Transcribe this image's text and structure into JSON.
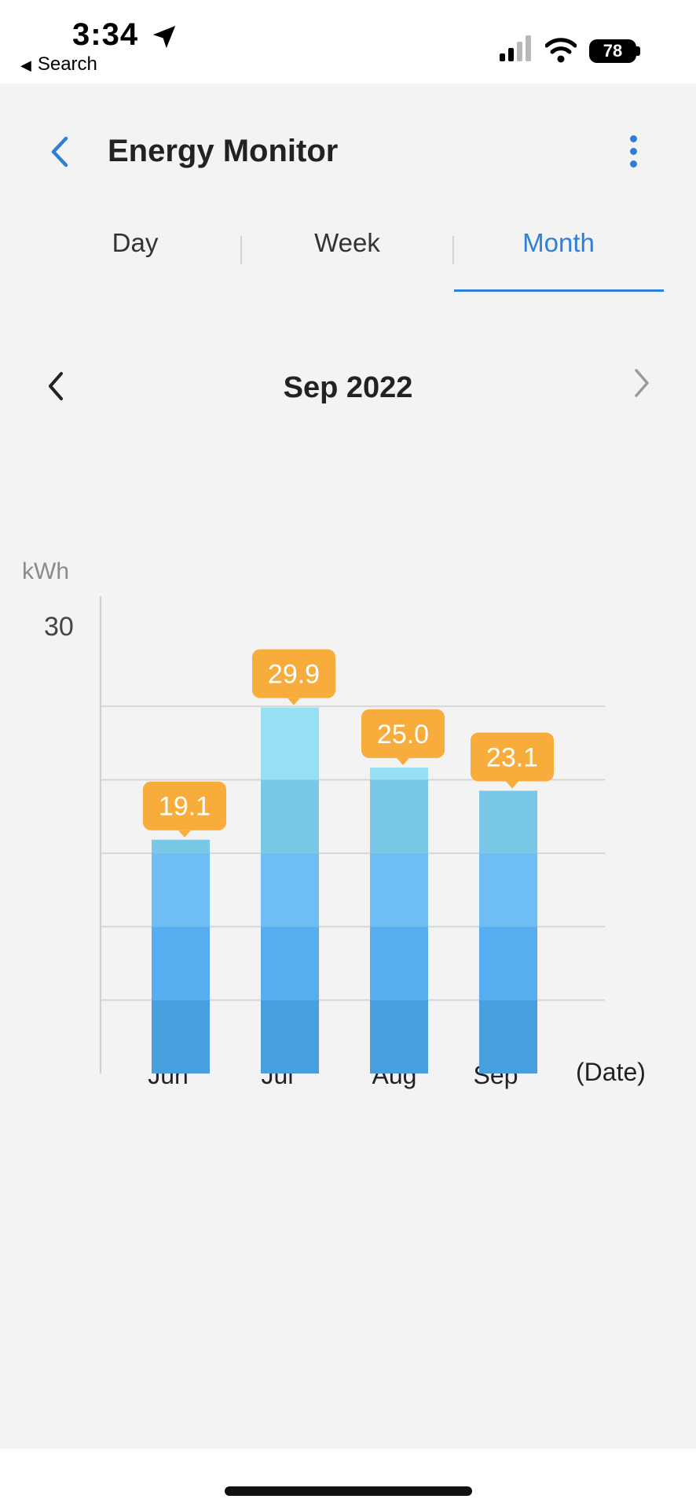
{
  "status_bar": {
    "time": "3:34",
    "back_label": "Search",
    "battery": "78"
  },
  "header": {
    "title": "Energy Monitor"
  },
  "tabs": [
    {
      "label": "Day",
      "active": false
    },
    {
      "label": "Week",
      "active": false
    },
    {
      "label": "Month",
      "active": true
    }
  ],
  "period": {
    "label": "Sep 2022"
  },
  "colors": {
    "accent": "#2f7fd6",
    "badge": "#f8ac3c",
    "bar_levels": [
      "#479fe0",
      "#56aef0",
      "#6fbdf5",
      "#7ac8e8",
      "#96e0f4"
    ]
  },
  "chart_data": {
    "type": "bar",
    "unit_label": "kWh",
    "x_axis_label": "(Date)",
    "categories": [
      "Jun",
      "Jul",
      "Aug",
      "Sep"
    ],
    "values": [
      19.1,
      29.9,
      25.0,
      23.1
    ],
    "value_labels": [
      "19.1",
      "29.9",
      "25.0",
      "23.1"
    ],
    "y_tick_labels": [
      "30"
    ],
    "ylim": [
      0,
      39
    ],
    "gridlines": [
      6,
      12,
      18,
      24,
      30
    ],
    "grid": true
  }
}
